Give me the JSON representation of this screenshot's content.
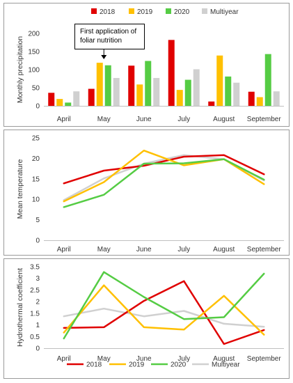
{
  "legend_top": [
    {
      "label": "2018",
      "color": "#E00000"
    },
    {
      "label": "2019",
      "color": "#FFC000"
    },
    {
      "label": "2020",
      "color": "#55CC44"
    },
    {
      "label": "Multiyear",
      "color": "#D0D0D0"
    }
  ],
  "legend_bottom": [
    {
      "label": "2018",
      "color": "#E00000"
    },
    {
      "label": "2019",
      "color": "#FFC000"
    },
    {
      "label": "2020",
      "color": "#55CC44"
    },
    {
      "label": "Multiyear",
      "color": "#D0D0D0"
    }
  ],
  "chart_data": [
    {
      "type": "bar",
      "title": "",
      "xlabel": "",
      "ylabel": "Monthly precipitation",
      "ylim": [
        0,
        200
      ],
      "yticks": [
        0,
        50,
        100,
        150,
        200
      ],
      "grid": false,
      "legend_position": "top",
      "categories": [
        "April",
        "May",
        "June",
        "July",
        "August",
        "September"
      ],
      "series": [
        {
          "name": "2018",
          "color": "#E00000",
          "values": [
            36,
            47,
            111,
            182,
            12,
            39
          ]
        },
        {
          "name": "2019",
          "color": "#FFC000",
          "values": [
            19,
            119,
            59,
            44,
            139,
            24
          ]
        },
        {
          "name": "2020",
          "color": "#55CC44",
          "values": [
            9,
            112,
            124,
            72,
            81,
            143
          ]
        },
        {
          "name": "Multiyear",
          "color": "#D0D0D0",
          "values": [
            40,
            77,
            77,
            101,
            64,
            40
          ]
        }
      ],
      "annotation": {
        "text_lines": [
          "First application of",
          "foliar nutrition"
        ],
        "category": "May"
      }
    },
    {
      "type": "line",
      "title": "",
      "xlabel": "",
      "ylabel": "Mean temperature",
      "ylim": [
        0,
        25
      ],
      "yticks": [
        0,
        5,
        10,
        15,
        20,
        25
      ],
      "grid": false,
      "categories": [
        "April",
        "May",
        "June",
        "July",
        "August",
        "September"
      ],
      "series": [
        {
          "name": "2018",
          "color": "#E00000",
          "values": [
            13.9,
            17.0,
            18.2,
            20.4,
            20.8,
            16.1
          ]
        },
        {
          "name": "2019",
          "color": "#FFC000",
          "values": [
            9.5,
            14.2,
            21.9,
            18.3,
            19.8,
            13.7
          ]
        },
        {
          "name": "2020",
          "color": "#55CC44",
          "values": [
            8.1,
            11.1,
            18.7,
            18.8,
            19.8,
            14.8
          ]
        },
        {
          "name": "Multiyear",
          "color": "#D0D0D0",
          "values": [
            9.8,
            15.1,
            18.7,
            20.8,
            19.8,
            14.6
          ]
        }
      ]
    },
    {
      "type": "line",
      "title": "",
      "xlabel": "",
      "ylabel": "Hydrothermal coefficient",
      "ylim": [
        0,
        3.5
      ],
      "yticks": [
        "0",
        "0.5",
        "1",
        "1.5",
        "2",
        "2.5",
        "3",
        "3.5"
      ],
      "grid": false,
      "legend_position": "bottom",
      "categories": [
        "April",
        "May",
        "June",
        "July",
        "August",
        "September"
      ],
      "series": [
        {
          "name": "2018",
          "color": "#E00000",
          "values": [
            0.87,
            0.9,
            2.03,
            2.88,
            0.18,
            0.78
          ]
        },
        {
          "name": "2019",
          "color": "#FFC000",
          "values": [
            0.67,
            2.7,
            0.9,
            0.8,
            2.25,
            0.58
          ]
        },
        {
          "name": "2020",
          "color": "#55CC44",
          "values": [
            0.42,
            3.27,
            2.2,
            1.25,
            1.33,
            3.2
          ]
        },
        {
          "name": "Multiyear",
          "color": "#D0D0D0",
          "values": [
            1.37,
            1.7,
            1.37,
            1.6,
            1.05,
            0.92
          ]
        }
      ]
    }
  ]
}
